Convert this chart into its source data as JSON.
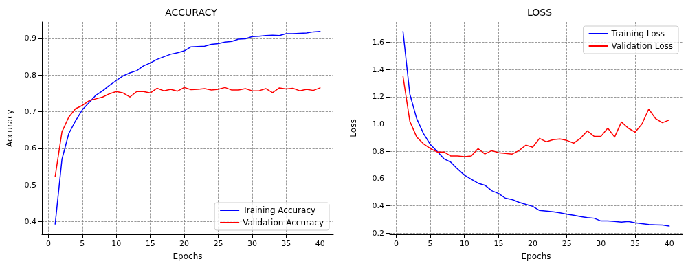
{
  "chart_data": [
    {
      "type": "line",
      "title": "ACCURACY",
      "xlabel": "Epochs",
      "ylabel": "Accuracy",
      "x": [
        1,
        2,
        3,
        4,
        5,
        6,
        7,
        8,
        9,
        10,
        11,
        12,
        13,
        14,
        15,
        16,
        17,
        18,
        19,
        20,
        21,
        22,
        23,
        24,
        25,
        26,
        27,
        28,
        29,
        30,
        31,
        32,
        33,
        34,
        35,
        36,
        37,
        38,
        39,
        40
      ],
      "series": [
        {
          "name": "Training Accuracy",
          "color": "#0000ff",
          "values": [
            0.393,
            0.57,
            0.64,
            0.675,
            0.705,
            0.725,
            0.745,
            0.757,
            0.772,
            0.785,
            0.798,
            0.806,
            0.812,
            0.825,
            0.833,
            0.843,
            0.85,
            0.857,
            0.861,
            0.866,
            0.877,
            0.878,
            0.879,
            0.884,
            0.886,
            0.89,
            0.892,
            0.898,
            0.899,
            0.905,
            0.906,
            0.908,
            0.909,
            0.908,
            0.913,
            0.913,
            0.914,
            0.915,
            0.918,
            0.919
          ]
        },
        {
          "name": "Validation Accuracy",
          "color": "#ff0000",
          "values": [
            0.523,
            0.645,
            0.685,
            0.708,
            0.717,
            0.73,
            0.735,
            0.74,
            0.749,
            0.755,
            0.751,
            0.74,
            0.755,
            0.755,
            0.751,
            0.764,
            0.757,
            0.761,
            0.756,
            0.766,
            0.76,
            0.761,
            0.763,
            0.759,
            0.761,
            0.766,
            0.759,
            0.759,
            0.763,
            0.757,
            0.757,
            0.763,
            0.752,
            0.765,
            0.762,
            0.764,
            0.757,
            0.761,
            0.758,
            0.765
          ]
        }
      ],
      "xlim": [
        -0.95,
        41.95
      ],
      "xticks": [
        0,
        5,
        10,
        15,
        20,
        25,
        30,
        35,
        40
      ],
      "ylim": [
        0.365,
        0.945
      ],
      "yticks": [
        0.4,
        0.5,
        0.6,
        0.7,
        0.8,
        0.9
      ],
      "grid": true,
      "legend": "bottom right",
      "marker": "none",
      "line_style": "solid"
    },
    {
      "type": "line",
      "title": "LOSS",
      "xlabel": "Epochs",
      "ylabel": "Loss",
      "x": [
        1,
        2,
        3,
        4,
        5,
        6,
        7,
        8,
        9,
        10,
        11,
        12,
        13,
        14,
        15,
        16,
        17,
        18,
        19,
        20,
        21,
        22,
        23,
        24,
        25,
        26,
        27,
        28,
        29,
        30,
        31,
        32,
        33,
        34,
        35,
        36,
        37,
        38,
        39,
        40
      ],
      "series": [
        {
          "name": "Training Loss",
          "color": "#0000ff",
          "values": [
            1.68,
            1.22,
            1.04,
            0.93,
            0.85,
            0.8,
            0.745,
            0.72,
            0.67,
            0.625,
            0.595,
            0.565,
            0.55,
            0.51,
            0.49,
            0.455,
            0.445,
            0.425,
            0.41,
            0.395,
            0.365,
            0.36,
            0.355,
            0.348,
            0.338,
            0.33,
            0.32,
            0.312,
            0.308,
            0.288,
            0.288,
            0.285,
            0.28,
            0.285,
            0.275,
            0.268,
            0.262,
            0.26,
            0.258,
            0.25
          ]
        },
        {
          "name": "Validation Loss",
          "color": "#ff0000",
          "values": [
            1.35,
            1.02,
            0.905,
            0.855,
            0.82,
            0.795,
            0.795,
            0.765,
            0.765,
            0.76,
            0.765,
            0.82,
            0.78,
            0.805,
            0.79,
            0.785,
            0.78,
            0.805,
            0.845,
            0.83,
            0.895,
            0.87,
            0.885,
            0.89,
            0.88,
            0.86,
            0.895,
            0.95,
            0.91,
            0.91,
            0.97,
            0.905,
            1.015,
            0.97,
            0.94,
            1.0,
            1.11,
            1.04,
            1.01,
            1.03
          ]
        }
      ],
      "xlim": [
        -0.95,
        41.95
      ],
      "xticks": [
        0,
        5,
        10,
        15,
        20,
        25,
        30,
        35,
        40
      ],
      "ylim": [
        0.19,
        1.75
      ],
      "yticks": [
        0.2,
        0.4,
        0.6,
        0.8,
        {
          "value": 1.0,
          "label": "1.0"
        },
        1.2,
        1.4,
        1.6
      ],
      "grid": true,
      "legend": "top right",
      "marker": "none",
      "line_style": "solid"
    }
  ]
}
